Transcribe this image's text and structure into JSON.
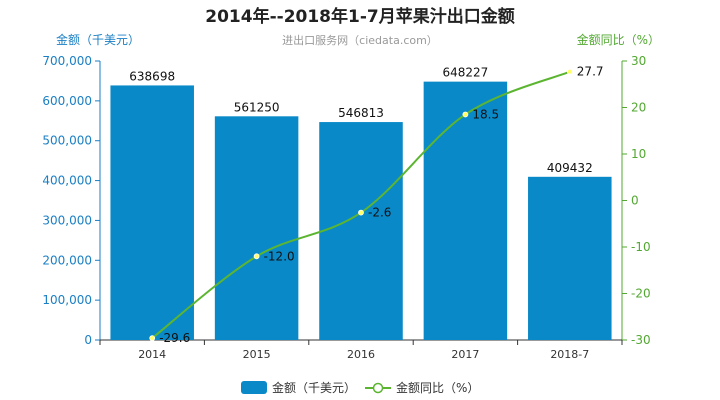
{
  "chart_data": {
    "type": "bar",
    "title": "2014年--2018年1-7月苹果汁出口金额",
    "subtitle": "进出口服务网（ciedata.com）",
    "categories": [
      "2014",
      "2015",
      "2016",
      "2017",
      "2018-7"
    ],
    "ylabel": "金额（千美元）",
    "y2label": "金额同比（%）",
    "ylim": [
      0,
      700000
    ],
    "y2lim": [
      -30,
      30
    ],
    "yticks": [
      "0",
      "100,000",
      "200,000",
      "300,000",
      "400,000",
      "500,000",
      "600,000",
      "700,000"
    ],
    "y2ticks": [
      "-30",
      "-20",
      "-10",
      "0",
      "10",
      "20",
      "30"
    ],
    "series": [
      {
        "name": "金额（千美元）",
        "type": "bar",
        "axis": "left",
        "values": [
          638698,
          561250,
          546813,
          648227,
          409432
        ],
        "labels": [
          "638698",
          "561250",
          "546813",
          "648227",
          "409432"
        ]
      },
      {
        "name": "金额同比（%）",
        "type": "line",
        "axis": "right",
        "values": [
          -29.6,
          -12.0,
          -2.6,
          18.5,
          27.7
        ],
        "labels": [
          "-29.6",
          "-12.0",
          "-2.6",
          "18.5",
          "27.7"
        ]
      }
    ],
    "legend_position": "bottom-center",
    "grid": false,
    "colors": {
      "bar": "#0a89c8",
      "line": "#5cb531",
      "left_axis": "#1a7fc4",
      "right_axis": "#52a832"
    }
  }
}
